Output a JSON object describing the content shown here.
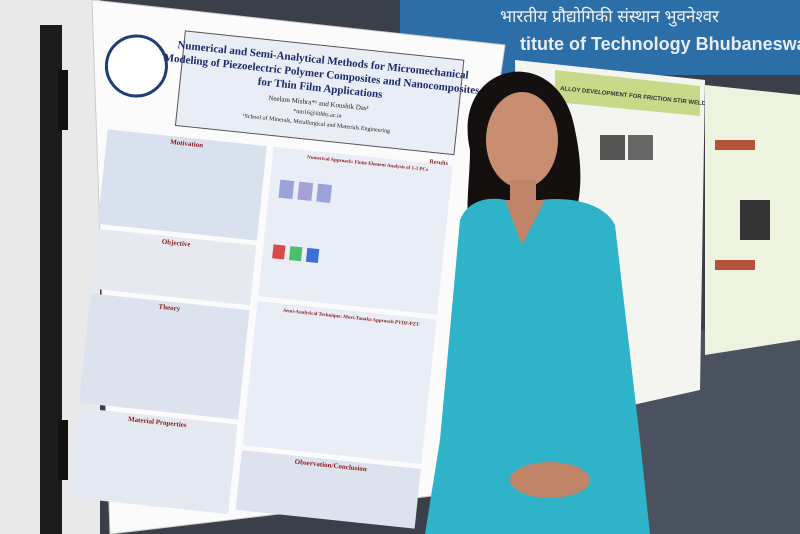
{
  "banner": {
    "hindi": "भारतीय प्रौद्योगिकी संस्थान भुवनेश्वर",
    "english": "titute of Technology Bhubaneswar"
  },
  "poster": {
    "title_lines": [
      "Numerical and Semi-Analytical Methods for Micromechanical",
      "Modeling of Piezoelectric Polymer Composites and Nanocomposites",
      "for Thin Film Applications"
    ],
    "authors": "Neelam Mishra*¹ and Koushik Das¹",
    "email": "*nm16@iitbbs.ac.in",
    "affiliation": "¹School of Minerals, Metallurgical and Materials Engineering",
    "sections": [
      "Motivation",
      "Objective",
      "Theory",
      "Material Properties",
      "Results",
      "Observation/Conclusion"
    ],
    "panels": [
      "Numerical Approach: Finite Element Analysis of 1-3 PCs",
      "Semi-Analytical Technique: Mori-Tanaka Approach PVDF/PZT"
    ]
  },
  "second_poster": {
    "title": "ALLOY DEVELOPMENT FOR FRICTION STIR WELDING AND PROCESSING"
  }
}
